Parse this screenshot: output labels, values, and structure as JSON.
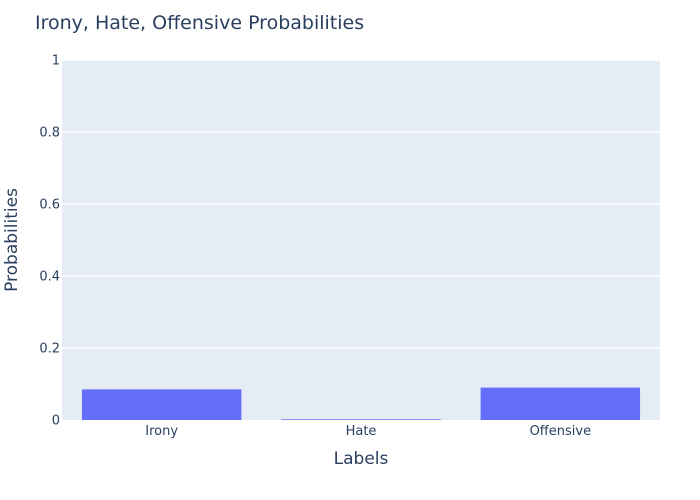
{
  "chart_data": {
    "type": "bar",
    "title": "Irony, Hate, Offensive Probabilities",
    "xlabel": "Labels",
    "ylabel": "Probabilities",
    "categories": [
      "Irony",
      "Hate",
      "Offensive"
    ],
    "values": [
      0.085,
      0.002,
      0.09
    ],
    "ylim": [
      0,
      1
    ],
    "yticks": [
      0,
      0.2,
      0.4,
      0.6,
      0.8,
      1
    ],
    "ytick_labels": [
      "0",
      "0.2",
      "0.4",
      "0.6",
      "0.8",
      "1"
    ],
    "grid": true,
    "bar_color": "#636efa",
    "plot_background": "#e5ecf6",
    "gridline_color": "#ffffff",
    "text_color": "#2a3f5f"
  }
}
